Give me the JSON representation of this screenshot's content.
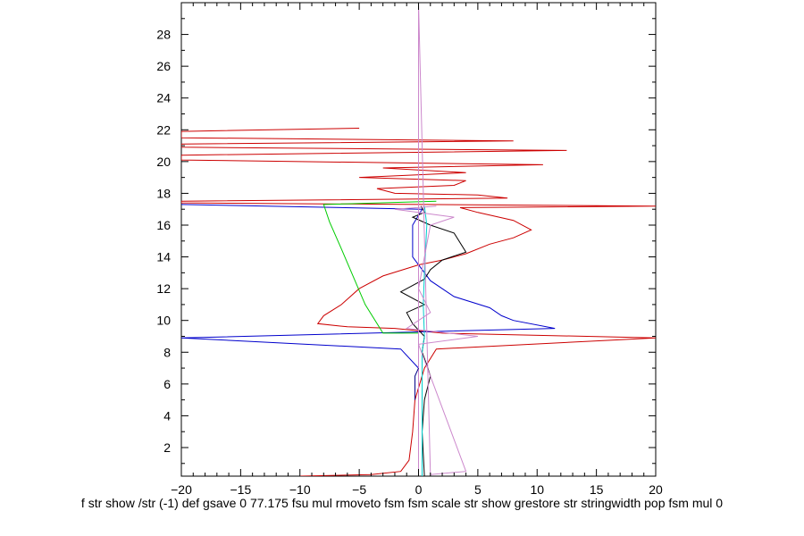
{
  "chart_data": {
    "type": "line",
    "title": "",
    "xlabel": "f str show /str (-1) def gsave 0 77.175 fsu mul rmoveto fsm fsm scale str show grestore str stringwidth pop fsm mul 0",
    "ylabel": "",
    "xlim": [
      -20,
      20
    ],
    "ylim": [
      0.2,
      30
    ],
    "grid": false,
    "legend": "none",
    "x_ticks": [
      -20,
      -15,
      -10,
      -5,
      0,
      5,
      10,
      15,
      20
    ],
    "y_ticks": [
      2,
      4,
      6,
      8,
      10,
      12,
      14,
      16,
      18,
      20,
      22,
      24,
      26,
      28
    ],
    "series": [
      {
        "color": "#cc0000",
        "values": [
          [
            -10.0,
            0.2
          ],
          [
            -4.0,
            0.3
          ],
          [
            -1.5,
            0.5
          ],
          [
            -0.8,
            1.2
          ],
          [
            -0.5,
            3.0
          ],
          [
            -0.3,
            5.0
          ],
          [
            0.5,
            7.0
          ],
          [
            1.5,
            8.2
          ],
          [
            20,
            8.9
          ],
          [
            2.0,
            9.2
          ],
          [
            -2.0,
            9.5
          ],
          [
            -6.0,
            9.6
          ],
          [
            -8.5,
            9.8
          ],
          [
            -8.0,
            10.3
          ],
          [
            -6.5,
            11.0
          ],
          [
            -5.0,
            12.0
          ],
          [
            -3.0,
            12.8
          ],
          [
            0.0,
            13.5
          ],
          [
            2.0,
            13.8
          ],
          [
            4.0,
            14.2
          ],
          [
            6.0,
            14.8
          ],
          [
            8.0,
            15.2
          ],
          [
            9.5,
            15.7
          ],
          [
            8.0,
            16.3
          ],
          [
            5.0,
            16.8
          ],
          [
            3.5,
            17.1
          ],
          [
            20,
            17.2
          ],
          [
            -20,
            17.4
          ],
          [
            -20,
            17.5
          ],
          [
            7.5,
            17.7
          ],
          [
            5.0,
            17.9
          ],
          [
            -2.0,
            18.0
          ],
          [
            -3.5,
            18.3
          ],
          [
            3.0,
            18.5
          ],
          [
            4.0,
            18.8
          ],
          [
            -5.0,
            19.0
          ],
          [
            4.0,
            19.3
          ],
          [
            -3.0,
            19.6
          ],
          [
            10.5,
            19.8
          ],
          [
            -20,
            20.1
          ],
          [
            -20,
            20.4
          ],
          [
            12.5,
            20.7
          ],
          [
            -20,
            20.9
          ],
          [
            -20,
            21.1
          ],
          [
            8.0,
            21.3
          ],
          [
            -20,
            21.5
          ],
          [
            -20,
            21.9
          ],
          [
            -5.0,
            22.1
          ]
        ]
      },
      {
        "color": "#0000cc",
        "values": [
          [
            0.0,
            1.0
          ],
          [
            0.0,
            7.0
          ],
          [
            -1.5,
            8.2
          ],
          [
            -20,
            8.9
          ],
          [
            11.5,
            9.5
          ],
          [
            8.0,
            10.0
          ],
          [
            7.0,
            10.3
          ],
          [
            6.0,
            10.8
          ],
          [
            3.0,
            11.5
          ],
          [
            1.0,
            12.5
          ],
          [
            -0.5,
            14.0
          ],
          [
            -0.5,
            16.0
          ],
          [
            0.3,
            17.0
          ],
          [
            -20,
            17.3
          ]
        ]
      },
      {
        "color": "#000000",
        "values": [
          [
            0.5,
            0.2
          ],
          [
            0.3,
            3.0
          ],
          [
            0.5,
            5.0
          ],
          [
            1.0,
            6.5
          ],
          [
            0.7,
            7.2
          ],
          [
            0.3,
            8.0
          ],
          [
            0.5,
            9.0
          ],
          [
            -0.5,
            9.8
          ],
          [
            -1.0,
            10.5
          ],
          [
            0.5,
            11.0
          ],
          [
            -1.5,
            11.8
          ],
          [
            0.5,
            12.6
          ],
          [
            1.0,
            13.2
          ],
          [
            2.0,
            13.8
          ],
          [
            4.0,
            14.3
          ],
          [
            3.0,
            15.5
          ],
          [
            1.0,
            16.0
          ],
          [
            -0.5,
            16.5
          ],
          [
            0.5,
            16.8
          ],
          [
            0.2,
            17.2
          ]
        ]
      },
      {
        "color": "#00cc00",
        "values": [
          [
            0.0,
            8.0
          ],
          [
            0.0,
            9.2
          ],
          [
            -3.0,
            9.2
          ],
          [
            -4.5,
            11.0
          ],
          [
            -6.5,
            14.5
          ],
          [
            -7.5,
            16.2
          ],
          [
            -8.0,
            17.3
          ],
          [
            1.5,
            17.5
          ]
        ]
      },
      {
        "color": "#00cccc",
        "values": [
          [
            0.3,
            0.2
          ],
          [
            0.3,
            8.0
          ],
          [
            0.5,
            9.0
          ],
          [
            0.4,
            11.0
          ],
          [
            0.5,
            13.0
          ],
          [
            0.7,
            16.0
          ],
          [
            0.5,
            17.2
          ]
        ]
      },
      {
        "color": "#cc88cc",
        "values": [
          [
            0.0,
            0.2
          ],
          [
            0.0,
            30
          ],
          [
            1.0,
            0.3
          ],
          [
            4.0,
            0.5
          ],
          [
            0.0,
            8.5
          ],
          [
            5.0,
            9.0
          ],
          [
            -1.0,
            9.5
          ],
          [
            1.0,
            10.5
          ],
          [
            0.0,
            12.0
          ],
          [
            1.0,
            16.0
          ],
          [
            3.0,
            16.5
          ],
          [
            -2.0,
            17.0
          ],
          [
            1.5,
            17.2
          ]
        ]
      },
      {
        "color": "#000088",
        "values": [
          [
            -0.3,
            5.0
          ],
          [
            -0.3,
            6.5
          ],
          [
            0.0,
            7.0
          ]
        ]
      }
    ]
  }
}
